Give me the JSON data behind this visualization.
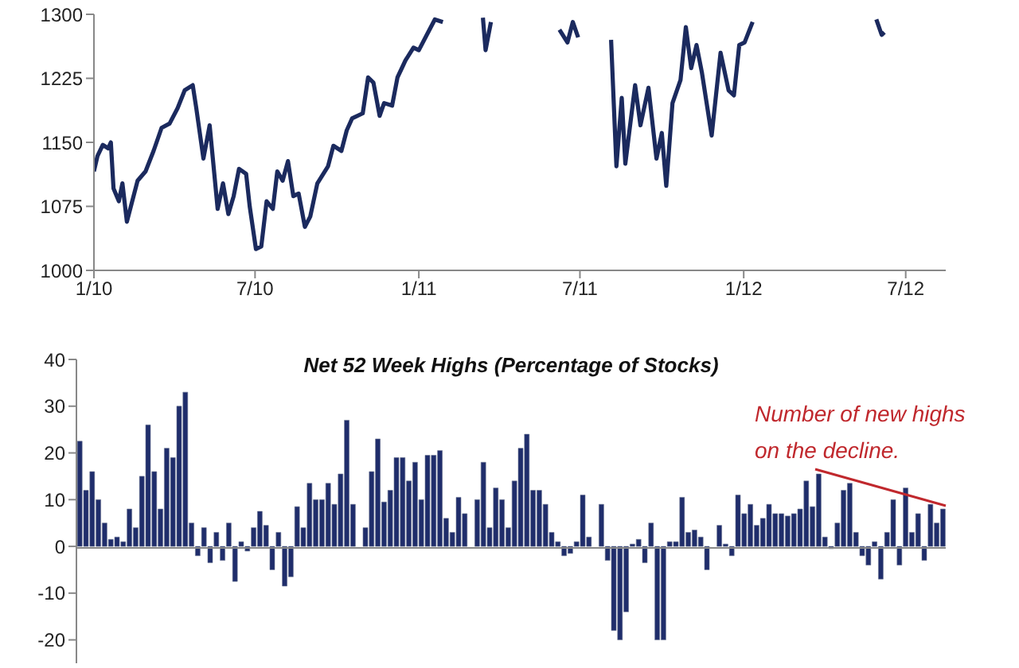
{
  "chart_data": [
    {
      "type": "line",
      "x": [
        "2010-01-01",
        "2010-01-05",
        "2010-01-11",
        "2010-01-17",
        "2010-01-20",
        "2010-01-23",
        "2010-01-29",
        "2010-02-02",
        "2010-02-07",
        "2010-02-19",
        "2010-02-28",
        "2010-03-09",
        "2010-03-18",
        "2010-03-27",
        "2010-04-05",
        "2010-04-13",
        "2010-04-22",
        "2010-04-26",
        "2010-05-04",
        "2010-05-11",
        "2010-05-20",
        "2010-05-26",
        "2010-06-01",
        "2010-06-07",
        "2010-06-13",
        "2010-06-21",
        "2010-06-25",
        "2010-07-02",
        "2010-07-08",
        "2010-07-14",
        "2010-07-21",
        "2010-07-26",
        "2010-08-01",
        "2010-08-07",
        "2010-08-13",
        "2010-08-19",
        "2010-08-26",
        "2010-09-01",
        "2010-09-09",
        "2010-09-21",
        "2010-09-27",
        "2010-10-06",
        "2010-10-12",
        "2010-10-18",
        "2010-10-30",
        "2010-11-05",
        "2010-11-11",
        "2010-11-18",
        "2010-11-23",
        "2010-12-02",
        "2010-12-08",
        "2010-12-17",
        "2010-12-26",
        "2011-01-01",
        "2011-01-10",
        "2011-01-19",
        "2011-01-28",
        "2011-02-03",
        "2011-03-14",
        "2011-03-17",
        "2011-03-23",
        "2011-04-01",
        "2011-06-08",
        "2011-06-17",
        "2011-06-23",
        "2011-06-29",
        "2011-07-05",
        "2011-08-05",
        "2011-08-11",
        "2011-08-17",
        "2011-08-21",
        "2011-09-01",
        "2011-09-07",
        "2011-09-16",
        "2011-09-25",
        "2011-10-01",
        "2011-10-06",
        "2011-10-13",
        "2011-10-22",
        "2011-10-28",
        "2011-11-03",
        "2011-11-09",
        "2011-11-15",
        "2011-11-26",
        "2011-12-06",
        "2011-12-15",
        "2011-12-21",
        "2011-12-27",
        "2012-01-02",
        "2012-01-11",
        "2012-01-20",
        "2012-05-29",
        "2012-06-04",
        "2012-06-07"
      ],
      "values": [
        1116,
        1134,
        1147,
        1143,
        1150,
        1096,
        1081,
        1102,
        1057,
        1105,
        1116,
        1140,
        1167,
        1172,
        1190,
        1211,
        1217,
        1190,
        1131,
        1170,
        1072,
        1102,
        1066,
        1087,
        1119,
        1113,
        1075,
        1025,
        1028,
        1081,
        1072,
        1116,
        1105,
        1128,
        1087,
        1090,
        1051,
        1063,
        1102,
        1122,
        1146,
        1140,
        1164,
        1178,
        1184,
        1226,
        1220,
        1181,
        1196,
        1193,
        1226,
        1246,
        1261,
        1258,
        1276,
        1294,
        1291,
        null,
        1296,
        1258,
        1291,
        null,
        1282,
        1267,
        1291,
        1273,
        null,
        1270,
        1122,
        1202,
        1125,
        1217,
        1170,
        1214,
        1131,
        1161,
        1099,
        1196,
        1223,
        1285,
        1237,
        1264,
        1232,
        1158,
        1255,
        1211,
        1205,
        1264,
        1267,
        1291,
        null,
        1294,
        1276,
        1279
      ],
      "color": "#1b2a5e",
      "ylim": [
        1000,
        1300
      ],
      "yticks": [
        1000,
        1075,
        1150,
        1225,
        1300
      ],
      "xlim": [
        "2010-01-01",
        "2012-08-15"
      ],
      "xticks": [
        {
          "value": "2010-01-01",
          "label": "1/10"
        },
        {
          "value": "2010-07-01",
          "label": "7/10"
        },
        {
          "value": "2011-01-01",
          "label": "1/11"
        },
        {
          "value": "2011-07-01",
          "label": "7/11"
        },
        {
          "value": "2012-01-01",
          "label": "1/12"
        },
        {
          "value": "2012-07-01",
          "label": "7/12"
        }
      ],
      "grid": false,
      "legend": false,
      "marker": "none"
    },
    {
      "type": "bar",
      "title": "Net 52 Week Highs (Percentage of Stocks)",
      "categories": [
        null,
        null,
        null,
        null,
        null,
        null,
        null,
        null,
        null,
        null,
        null,
        null,
        null,
        null,
        null,
        null,
        null,
        null,
        null,
        null,
        null,
        null,
        null,
        null,
        null,
        null,
        null,
        null,
        null,
        null,
        null,
        null,
        null,
        null,
        null,
        null,
        null,
        null,
        null,
        null,
        null,
        null,
        null,
        null,
        null,
        null,
        null,
        null,
        null,
        null,
        null,
        null,
        null,
        null,
        null,
        null,
        null,
        null,
        null,
        null,
        null,
        null,
        null,
        null,
        null,
        null,
        null,
        null,
        null,
        null,
        null,
        null,
        null,
        null,
        null,
        null,
        null,
        null,
        null,
        null,
        null,
        null,
        null,
        null,
        null,
        null,
        null,
        null,
        null,
        null,
        null,
        null,
        null,
        null,
        null,
        null,
        null,
        null,
        null,
        null,
        null,
        null,
        null,
        null,
        null,
        null,
        null,
        null,
        null,
        null,
        null,
        null,
        null,
        null,
        null,
        null,
        null,
        null,
        null,
        null,
        null,
        null,
        null,
        null,
        null,
        null,
        null,
        null,
        null,
        null,
        null,
        null,
        null,
        null,
        null,
        null,
        null,
        null,
        null,
        null
      ],
      "values": [
        22.5,
        12,
        16,
        10,
        5,
        1.5,
        2,
        1,
        8,
        4,
        15,
        26,
        16,
        8,
        21,
        19,
        30,
        33,
        5,
        -2,
        4,
        -3.5,
        3,
        -3,
        5,
        -7.5,
        1,
        -1,
        4,
        7.5,
        4.5,
        -5,
        3,
        -8.5,
        -6.5,
        8.5,
        4,
        13.5,
        10,
        10,
        13.5,
        9,
        15.5,
        27,
        9,
        0,
        4,
        16,
        23,
        9.5,
        12,
        19,
        19,
        14,
        18,
        10,
        19.5,
        19.5,
        20.5,
        6,
        3,
        10.5,
        7,
        0,
        10,
        18,
        4,
        12.5,
        10,
        4,
        14,
        21,
        24,
        12,
        12,
        9,
        3,
        1,
        -2,
        -1.5,
        1,
        11,
        2,
        0,
        9,
        -3,
        -18,
        -20,
        -14,
        0.5,
        1.5,
        -3.5,
        5,
        -20,
        -20,
        1,
        1,
        10.5,
        3,
        3.5,
        2,
        -5,
        0,
        4.5,
        0.5,
        -2,
        11,
        7,
        9,
        4.5,
        6,
        9,
        7,
        7,
        6.5,
        7,
        8,
        14,
        8.5,
        15.5,
        2,
        -0.5,
        5,
        12,
        13.5,
        3,
        -2,
        -4,
        1,
        -7,
        3,
        10,
        -4,
        12.5,
        3,
        7,
        -3,
        9,
        5,
        8
      ],
      "color": "#1f2d6b",
      "ylim": [
        -25,
        40
      ],
      "yticks": [
        -20,
        -10,
        0,
        10,
        20,
        30,
        40
      ],
      "tick_labels": "y",
      "grid": false,
      "legend": false,
      "annotations": [
        "Number of new highs\non the decline."
      ]
    }
  ]
}
